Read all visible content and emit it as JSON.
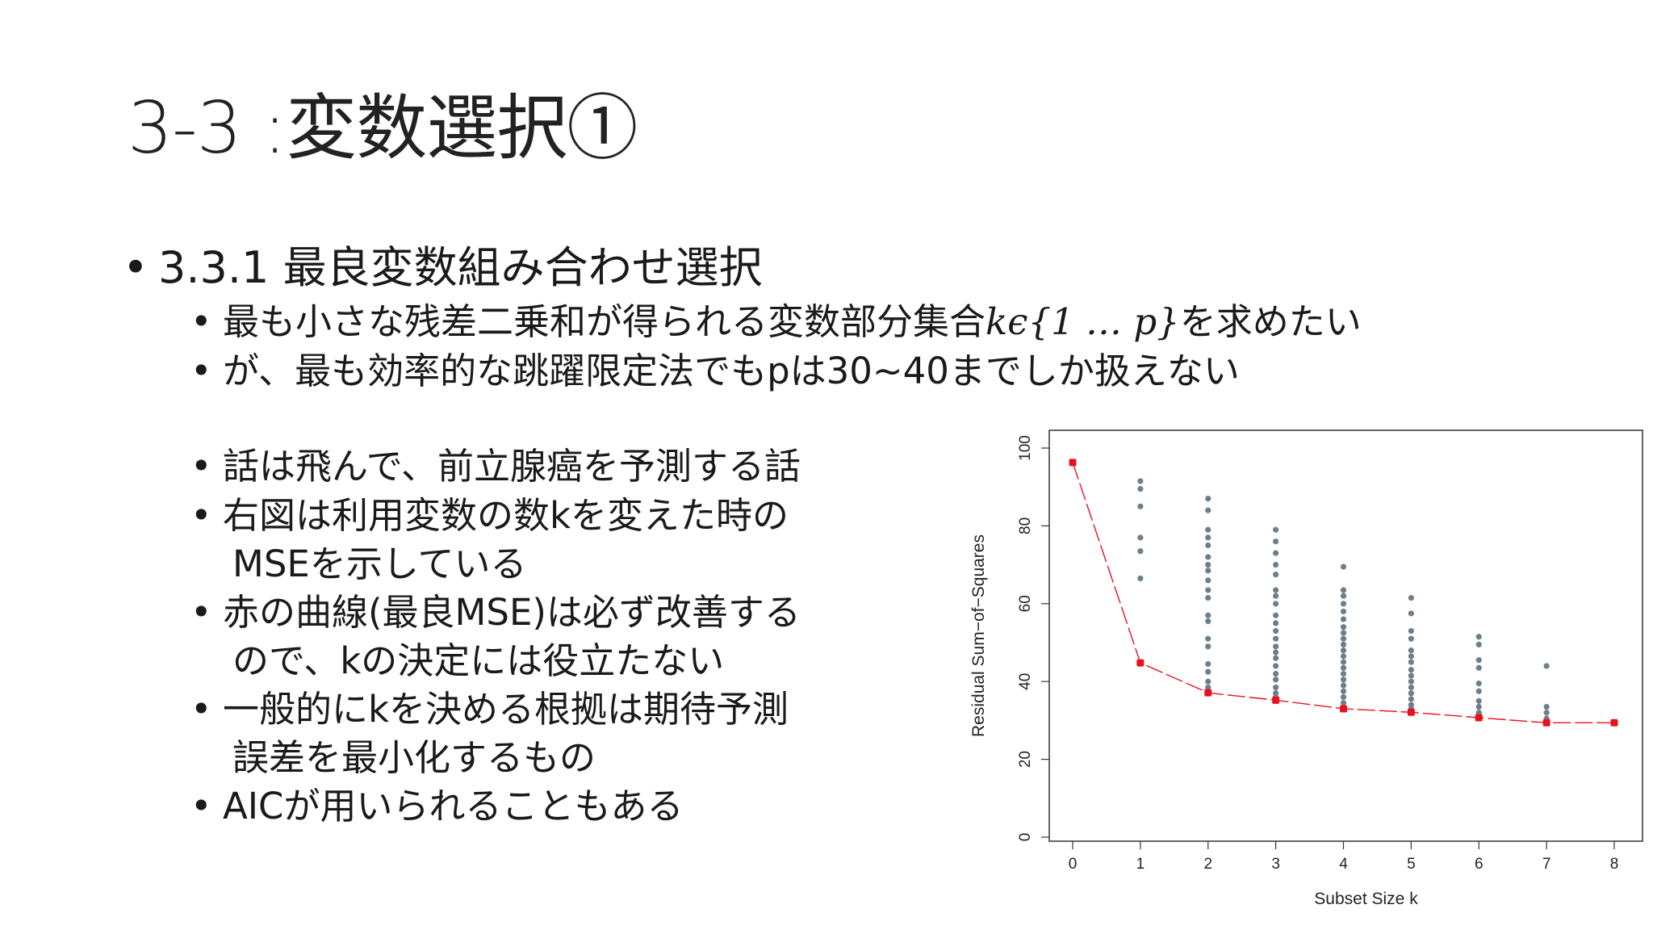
{
  "slide": {
    "title": "3-3 :変数選択①",
    "heading": "3.3.1 最良変数組み合わせ選択",
    "sub_bullets": [
      {
        "pre": "最も小さな残差二乗和が得られる変数部分集合",
        "math": "kϵ{1 … p}",
        "post": "を求めたい"
      },
      {
        "text": "が、最も効率的な跳躍限定法でもpは30~40までしか扱えない"
      }
    ],
    "body_bullets": [
      {
        "line1": "話は飛んで、前立腺癌を予測する話",
        "line2": ""
      },
      {
        "line1": "右図は利用変数の数kを変えた時の",
        "line2": "MSEを示している"
      },
      {
        "line1": "赤の曲線(最良MSE)は必ず改善する",
        "line2": "ので、kの決定には役立たない"
      },
      {
        "line1": "一般的にkを決める根拠は期待予測",
        "line2": "誤差を最小化するもの"
      },
      {
        "line1": "AICが用いられることもある",
        "line2": ""
      }
    ]
  },
  "chart_data": {
    "type": "scatter",
    "title": "",
    "xlabel": "Subset Size k",
    "ylabel": "Residual Sum−of−Squares",
    "xlim": [
      0,
      8
    ],
    "ylim": [
      0,
      100
    ],
    "x_ticks": [
      "0",
      "1",
      "2",
      "3",
      "4",
      "5",
      "6",
      "7",
      "8"
    ],
    "y_ticks": [
      "0",
      "20",
      "40",
      "60",
      "80",
      "100"
    ],
    "grid": false,
    "colors": {
      "subsets": "#6e7f8c",
      "best": "#e8121e",
      "best_line": "#e8121e"
    },
    "series": [
      {
        "name": "",
        "role": "best",
        "x": [
          0,
          1,
          2,
          3,
          4,
          5,
          6,
          7,
          8
        ],
        "y": [
          96.3,
          44.8,
          37.1,
          35.2,
          33.0,
          32.1,
          30.7,
          29.4,
          29.4
        ]
      },
      {
        "name": "",
        "role": "subsets",
        "points": [
          [
            1,
            91.5
          ],
          [
            1,
            89.5
          ],
          [
            1,
            85
          ],
          [
            1,
            77
          ],
          [
            1,
            73.5
          ],
          [
            1,
            66.5
          ],
          [
            2,
            87
          ],
          [
            2,
            84
          ],
          [
            2,
            79
          ],
          [
            2,
            77
          ],
          [
            2,
            75
          ],
          [
            2,
            72
          ],
          [
            2,
            70
          ],
          [
            2,
            68.5
          ],
          [
            2,
            66
          ],
          [
            2,
            63.5
          ],
          [
            2,
            61.5
          ],
          [
            2,
            57
          ],
          [
            2,
            55.5
          ],
          [
            2,
            51
          ],
          [
            2,
            49
          ],
          [
            2,
            44.5
          ],
          [
            2,
            42.5
          ],
          [
            2,
            40
          ],
          [
            2,
            38.5
          ],
          [
            3,
            79
          ],
          [
            3,
            76
          ],
          [
            3,
            73
          ],
          [
            3,
            70
          ],
          [
            3,
            67.5
          ],
          [
            3,
            63.5
          ],
          [
            3,
            62
          ],
          [
            3,
            60
          ],
          [
            3,
            57
          ],
          [
            3,
            55
          ],
          [
            3,
            53
          ],
          [
            3,
            51
          ],
          [
            3,
            49
          ],
          [
            3,
            47.5
          ],
          [
            3,
            46
          ],
          [
            3,
            44
          ],
          [
            3,
            42
          ],
          [
            3,
            40.5
          ],
          [
            3,
            38.5
          ],
          [
            3,
            37
          ],
          [
            3,
            36
          ],
          [
            4,
            69.5
          ],
          [
            4,
            63.5
          ],
          [
            4,
            62
          ],
          [
            4,
            60
          ],
          [
            4,
            58
          ],
          [
            4,
            56
          ],
          [
            4,
            54
          ],
          [
            4,
            52.5
          ],
          [
            4,
            51
          ],
          [
            4,
            49.5
          ],
          [
            4,
            48
          ],
          [
            4,
            46.5
          ],
          [
            4,
            45
          ],
          [
            4,
            43.5
          ],
          [
            4,
            42
          ],
          [
            4,
            40.5
          ],
          [
            4,
            39
          ],
          [
            4,
            37.5
          ],
          [
            4,
            36
          ],
          [
            4,
            34.5
          ],
          [
            5,
            61.5
          ],
          [
            5,
            57.5
          ],
          [
            5,
            53
          ],
          [
            5,
            51
          ],
          [
            5,
            48
          ],
          [
            5,
            46.5
          ],
          [
            5,
            45
          ],
          [
            5,
            43
          ],
          [
            5,
            41.5
          ],
          [
            5,
            40
          ],
          [
            5,
            38.5
          ],
          [
            5,
            37
          ],
          [
            5,
            35.5
          ],
          [
            5,
            34
          ],
          [
            5,
            33
          ],
          [
            6,
            51.5
          ],
          [
            6,
            49.5
          ],
          [
            6,
            45.5
          ],
          [
            6,
            43.5
          ],
          [
            6,
            39.5
          ],
          [
            6,
            37.5
          ],
          [
            6,
            35
          ],
          [
            6,
            33.5
          ],
          [
            6,
            32
          ],
          [
            7,
            44
          ],
          [
            7,
            33.5
          ],
          [
            7,
            32
          ],
          [
            7,
            30.5
          ]
        ]
      }
    ]
  }
}
